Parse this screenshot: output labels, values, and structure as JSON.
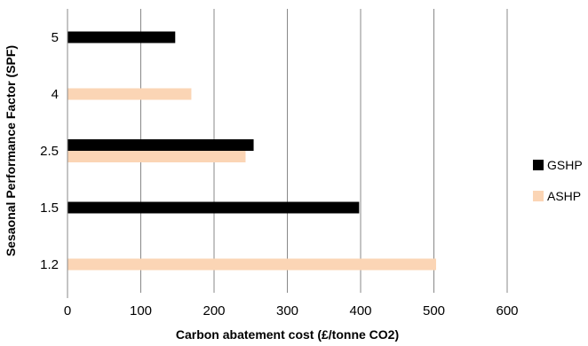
{
  "chart_data": {
    "type": "bar",
    "orientation": "horizontal",
    "title": "",
    "xlabel": "Carbon abatement cost (£/tonne CO2)",
    "ylabel": "Sesaonal Performance Factor (SPF)",
    "categories": [
      "1.2",
      "1.5",
      "2.5",
      "4",
      "5"
    ],
    "series": [
      {
        "name": "GSHP",
        "color": "#000000",
        "values": [
          null,
          398,
          254,
          null,
          147
        ]
      },
      {
        "name": "ASHP",
        "color": "#fbd5b5",
        "values": [
          503,
          null,
          243,
          169,
          null
        ]
      }
    ],
    "xlim": [
      0,
      600
    ],
    "xticks": [
      0,
      100,
      200,
      300,
      400,
      500,
      600
    ],
    "grid": "vertical",
    "legend": "right"
  }
}
